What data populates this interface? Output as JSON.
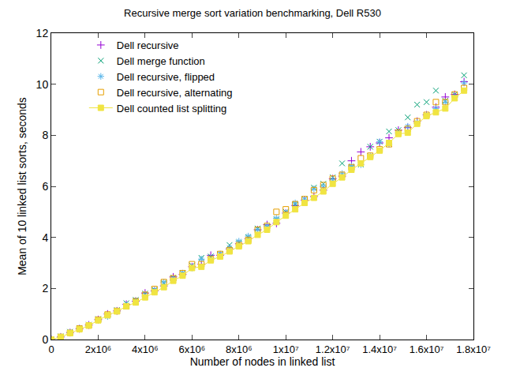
{
  "chart_data": {
    "type": "scatter",
    "title": "Recursive merge sort variation benchmarking, Dell R530",
    "x_label": "Number of nodes in linked list",
    "y_label": "Mean of 10 linked list sorts, seconds",
    "x": [
      0,
      400000,
      800000,
      1200000,
      1600000,
      2000000,
      2400000,
      2800000,
      3200000,
      3600000,
      4000000,
      4400000,
      4800000,
      5200000,
      5600000,
      6000000,
      6400000,
      6800000,
      7200000,
      7600000,
      8000000,
      8400000,
      8800000,
      9200000,
      9600000,
      10000000,
      10400000,
      10800000,
      11200000,
      11600000,
      12000000,
      12400000,
      12800000,
      13200000,
      13600000,
      14000000,
      14400000,
      14800000,
      15200000,
      15600000,
      16000000,
      16400000,
      16800000,
      17200000,
      17600000
    ],
    "series": [
      {
        "name": "Dell recursive",
        "color": "#9400d3",
        "marker": "cross",
        "values": [
          0,
          0.1,
          0.27,
          0.42,
          0.57,
          0.78,
          1.0,
          1.12,
          1.38,
          1.5,
          1.82,
          1.9,
          2.1,
          2.45,
          2.55,
          2.85,
          2.95,
          3.3,
          3.3,
          3.55,
          3.75,
          3.95,
          4.3,
          4.5,
          4.55,
          4.95,
          5.25,
          5.45,
          5.6,
          5.85,
          6.3,
          6.4,
          7.0,
          7.35,
          7.55,
          7.7,
          7.9,
          8.2,
          8.3,
          8.55,
          8.8,
          9.1,
          9.5,
          9.6,
          10.1
        ]
      },
      {
        "name": "Dell merge function",
        "color": "#009e73",
        "marker": "x",
        "values": [
          0,
          0.12,
          0.3,
          0.45,
          0.58,
          0.8,
          0.97,
          1.15,
          1.42,
          1.55,
          1.8,
          1.95,
          2.2,
          2.42,
          2.6,
          2.9,
          3.2,
          3.25,
          3.35,
          3.7,
          3.8,
          4.0,
          4.35,
          4.4,
          4.7,
          5.0,
          5.3,
          5.5,
          5.95,
          6.1,
          6.35,
          6.9,
          6.75,
          6.85,
          7.55,
          7.75,
          8.15,
          8.2,
          8.7,
          9.2,
          9.3,
          9.75,
          9.35,
          9.6,
          10.35
        ]
      },
      {
        "name": "Dell recursive, flipped",
        "color": "#56b4e9",
        "marker": "asterisk",
        "values": [
          0,
          0.1,
          0.28,
          0.44,
          0.56,
          0.76,
          0.9,
          1.12,
          1.35,
          1.52,
          1.75,
          1.92,
          2.25,
          2.35,
          2.6,
          2.8,
          3.15,
          3.2,
          3.35,
          3.6,
          3.85,
          4.05,
          4.3,
          4.45,
          4.75,
          4.95,
          5.35,
          5.5,
          5.9,
          6.0,
          6.25,
          6.5,
          6.8,
          6.85,
          7.2,
          7.75,
          7.65,
          8.1,
          8.35,
          8.5,
          8.8,
          9.05,
          9.3,
          9.5,
          10.05
        ]
      },
      {
        "name": "Dell recursive, alternating",
        "color": "#e69f00",
        "marker": "square-open",
        "values": [
          0,
          0.1,
          0.26,
          0.43,
          0.55,
          0.78,
          0.98,
          1.12,
          1.3,
          1.5,
          1.75,
          1.98,
          2.25,
          2.4,
          2.6,
          2.95,
          2.95,
          3.15,
          3.35,
          3.5,
          3.7,
          3.9,
          4.3,
          4.45,
          5.0,
          5.1,
          5.3,
          5.5,
          5.85,
          6.05,
          6.3,
          6.45,
          6.75,
          7.1,
          7.2,
          7.45,
          7.65,
          8.1,
          8.25,
          8.55,
          8.8,
          9.3,
          9.3,
          9.6,
          9.85
        ]
      },
      {
        "name": "Dell counted list splitting",
        "color": "#f0e442",
        "marker": "square",
        "line_style": "solid",
        "values": [
          0,
          0.1,
          0.25,
          0.4,
          0.55,
          0.75,
          0.95,
          1.1,
          1.3,
          1.45,
          1.65,
          1.85,
          2.05,
          2.3,
          2.5,
          2.8,
          2.85,
          3.1,
          3.25,
          3.45,
          3.65,
          3.85,
          4.1,
          4.3,
          4.6,
          4.85,
          5.1,
          5.35,
          5.55,
          5.8,
          6.1,
          6.35,
          6.65,
          6.9,
          7.15,
          7.4,
          7.7,
          8.05,
          8.1,
          8.45,
          8.75,
          8.9,
          9.05,
          9.45,
          9.75
        ]
      }
    ],
    "xlim": [
      0,
      18000000
    ],
    "xticks": [
      {
        "value": 0,
        "label": "0"
      },
      {
        "value": 2000000,
        "label": "2x10⁶"
      },
      {
        "value": 4000000,
        "label": "4x10⁶"
      },
      {
        "value": 6000000,
        "label": "6x10⁶"
      },
      {
        "value": 8000000,
        "label": "8x10⁶"
      },
      {
        "value": 10000000,
        "label": "1x10⁷"
      },
      {
        "value": 12000000,
        "label": "1.2x10⁷"
      },
      {
        "value": 14000000,
        "label": "1.4x10⁷"
      },
      {
        "value": 16000000,
        "label": "1.6x10⁷"
      },
      {
        "value": 18000000,
        "label": "1.8x10⁷"
      }
    ],
    "ylim": [
      0,
      12
    ],
    "yticks": [
      0,
      2,
      4,
      6,
      8,
      10,
      12
    ],
    "grid": false,
    "legend": "top-left"
  }
}
